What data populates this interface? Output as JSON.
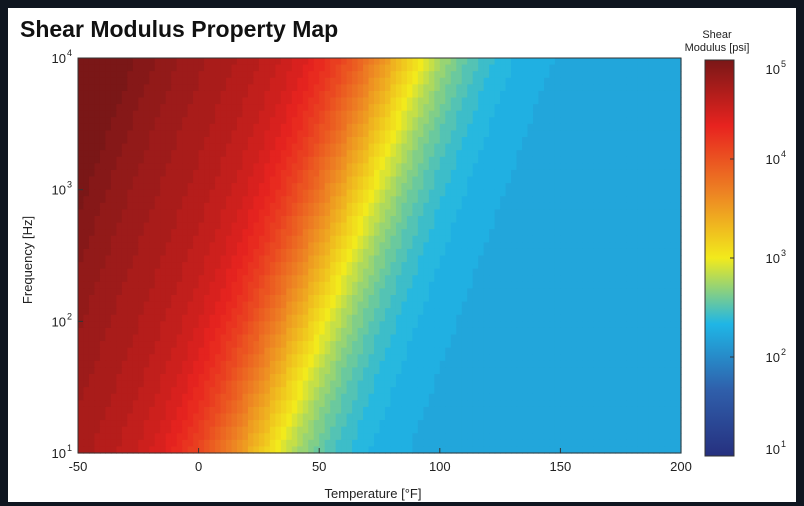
{
  "chart_data": {
    "type": "heatmap",
    "title": "Shear Modulus Property Map",
    "xlabel": "Temperature [°F]",
    "ylabel": "Frequency [Hz]",
    "xlim": [
      -50,
      200
    ],
    "ylim": [
      10,
      10000
    ],
    "y_scale": "log",
    "x_ticks": [
      "-50",
      "0",
      "50",
      "100",
      "150",
      "200"
    ],
    "y_ticks": [
      {
        "base": "10",
        "exp": "1"
      },
      {
        "base": "10",
        "exp": "2"
      },
      {
        "base": "10",
        "exp": "3"
      },
      {
        "base": "10",
        "exp": "4"
      }
    ],
    "grid": false,
    "colorbar": {
      "label": [
        "Shear",
        "Modulus [psi]"
      ],
      "scale": "log",
      "range": [
        10,
        100000
      ],
      "ticks": [
        {
          "base": "10",
          "exp": "1"
        },
        {
          "base": "10",
          "exp": "2"
        },
        {
          "base": "10",
          "exp": "3"
        },
        {
          "base": "10",
          "exp": "4"
        },
        {
          "base": "10",
          "exp": "5"
        }
      ],
      "colormap": [
        "#26307f",
        "#2f5fab",
        "#1fb6e6",
        "#f2ea1c",
        "#ed8223",
        "#e8231f",
        "#7a1717"
      ]
    },
    "contours": {
      "description_points": [
        {
          "temperature": -20,
          "frequency": 10,
          "log_modulus": 4.4
        },
        {
          "temperature": 10,
          "frequency": 10,
          "log_modulus": 3.5
        },
        {
          "temperature": 65,
          "frequency": 10,
          "log_modulus": 2.2
        },
        {
          "temperature": 80,
          "frequency": 10000,
          "log_modulus": 3.5
        },
        {
          "temperature": 150,
          "frequency": 10000,
          "log_modulus": 2.2
        },
        {
          "temperature": -40,
          "frequency": 10000,
          "log_modulus": 4.8
        }
      ]
    }
  }
}
